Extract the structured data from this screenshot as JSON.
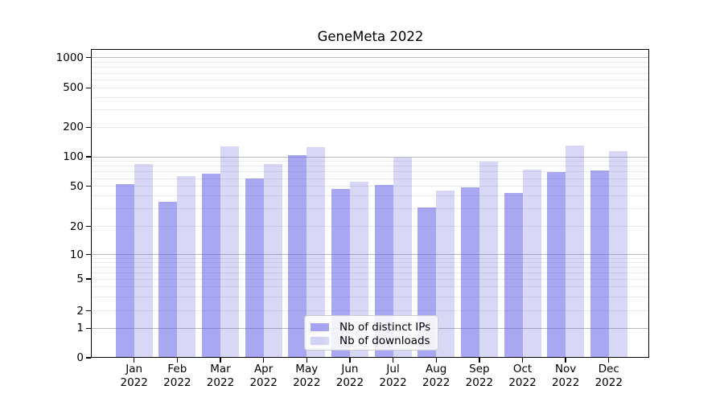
{
  "title": "GeneMeta 2022",
  "chart_data": {
    "type": "bar",
    "title": "GeneMeta 2022",
    "categories": [
      "Jan 2022",
      "Feb 2022",
      "Mar 2022",
      "Apr 2022",
      "May 2022",
      "Jun 2022",
      "Jul 2022",
      "Aug 2022",
      "Sep 2022",
      "Oct 2022",
      "Nov 2022",
      "Dec 2022"
    ],
    "x_tick_month": [
      "Jan",
      "Feb",
      "Mar",
      "Apr",
      "May",
      "Jun",
      "Jul",
      "Aug",
      "Sep",
      "Oct",
      "Nov",
      "Dec"
    ],
    "x_tick_year": "2022",
    "series": [
      {
        "name": "Nb of distinct IPs",
        "color": "rgba(95,95,231,0.55)",
        "values": [
          53,
          35,
          67,
          60,
          103,
          47,
          52,
          31,
          49,
          43,
          70,
          73
        ]
      },
      {
        "name": "Nb of downloads",
        "color": "rgba(99,99,219,0.25)",
        "values": [
          84,
          63,
          127,
          85,
          126,
          56,
          98,
          45,
          90,
          74,
          130,
          115
        ]
      }
    ],
    "xlabel": "",
    "ylabel": "",
    "yscale": "symlog",
    "y_ticks": [
      0,
      1,
      2,
      5,
      10,
      20,
      50,
      100,
      200,
      500,
      1000
    ],
    "ylim": [
      0,
      1200
    ],
    "grid": true,
    "legend_position": "lower center",
    "colors": {
      "major_grid": "#b8b8b8",
      "minor_grid": "#e9e9e9"
    }
  }
}
